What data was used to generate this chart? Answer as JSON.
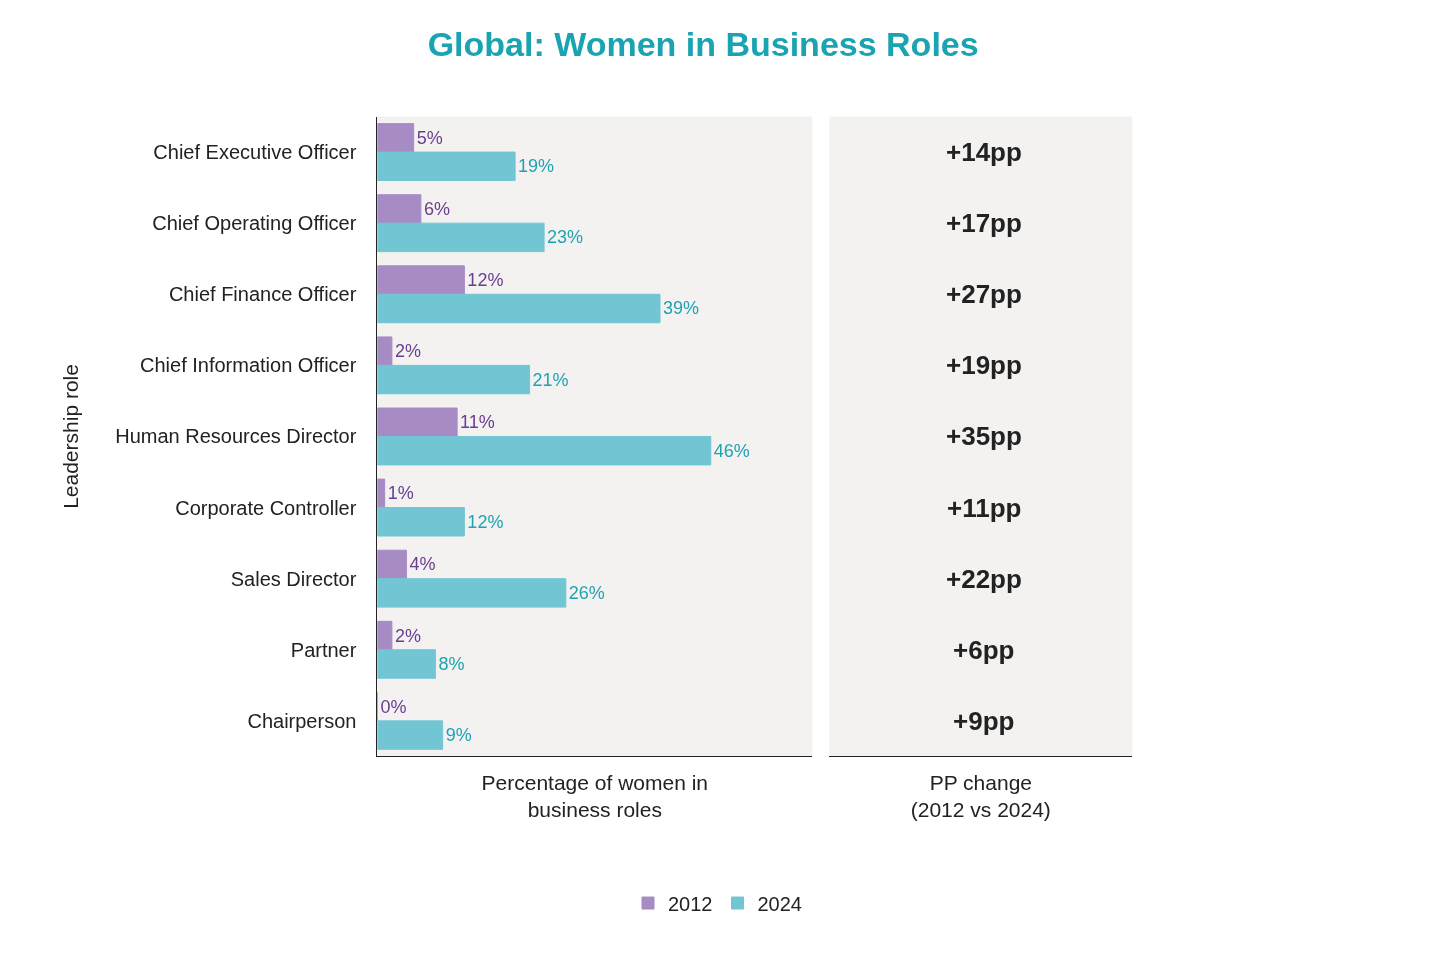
{
  "chart_data": [
    {
      "type": "bar",
      "title": "Global: Women in Business Roles",
      "orientation": "horizontal",
      "xlabel": "Percentage of women in\nbusiness roles",
      "ylabel": "Leadership role",
      "categories": [
        "Chief Executive Officer",
        "Chief Operating Officer",
        "Chief Finance Officer",
        "Chief Information Officer",
        "Human Resources Director",
        "Corporate Controller",
        "Sales Director",
        "Partner",
        "Chairperson"
      ],
      "series": [
        {
          "name": "2012",
          "color": "#a78bc4",
          "values": [
            5,
            6,
            12,
            2,
            11,
            1,
            4,
            2,
            0
          ],
          "value_labels": [
            "5%",
            "6%",
            "12%",
            "2%",
            "11%",
            "1%",
            "4%",
            "2%",
            "0%"
          ]
        },
        {
          "name": "2024",
          "color": "#72c5d3",
          "values": [
            19,
            23,
            39,
            21,
            46,
            12,
            26,
            8,
            9
          ],
          "value_labels": [
            "19%",
            "23%",
            "39%",
            "21%",
            "46%",
            "12%",
            "26%",
            "8%",
            "9%"
          ]
        }
      ],
      "xlim": [
        0,
        60
      ],
      "tick_labels": "y",
      "grid": false,
      "legend": "bottom"
    },
    {
      "type": "other",
      "xlabel": "PP change\n(2012 vs 2024)",
      "annotations": [
        "+14pp",
        "+17pp",
        "+27pp",
        "+19pp",
        "+35pp",
        "+11pp",
        "+22pp",
        "+6pp",
        "+9pp"
      ]
    }
  ]
}
